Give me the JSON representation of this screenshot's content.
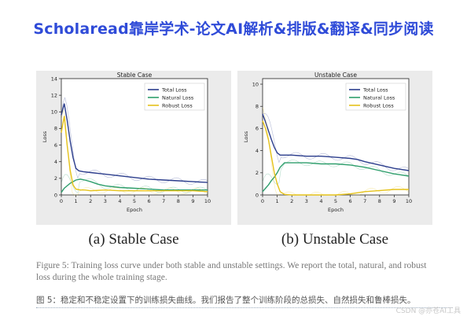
{
  "header": {
    "title": "Scholaread靠岸学术-论文AI解析&排版&翻译&同步阅读"
  },
  "figure": {
    "caption_left": "(a) Stable Case",
    "caption_right": "(b) Unstable Case",
    "caption_en": "Figure 5: Training loss curve under both stable and unstable settings. We report the total, natural, and robust loss during the whole training stage.",
    "caption_cn": "图 5：稳定和不稳定设置下的训练损失曲线。我们报告了整个训练阶段的总损失、自然损失和鲁棒损失。"
  },
  "watermark": "CSDN @亦苍AI工具",
  "chart_data": [
    {
      "type": "line",
      "title": "Stable Case",
      "xlabel": "Epoch",
      "ylabel": "Loss",
      "xlim": [
        0,
        10
      ],
      "ylim": [
        0,
        14
      ],
      "xticks": [
        0,
        1,
        2,
        3,
        4,
        5,
        6,
        7,
        8,
        9,
        10
      ],
      "yticks": [
        0,
        2,
        4,
        6,
        8,
        10,
        12,
        14
      ],
      "legend": "top-right",
      "grid": false,
      "series": [
        {
          "name": "Total Loss",
          "color": "#2b3d8c",
          "x": [
            0,
            0.2,
            0.4,
            0.6,
            0.8,
            1.0,
            1.2,
            1.5,
            2,
            3,
            4,
            5,
            6,
            7,
            8,
            9,
            10
          ],
          "y": [
            9.6,
            11.0,
            9.0,
            6.5,
            4.5,
            3.2,
            2.9,
            2.8,
            2.7,
            2.5,
            2.3,
            2.1,
            1.9,
            1.8,
            1.7,
            1.6,
            1.5
          ]
        },
        {
          "name": "Natural Loss",
          "color": "#2e9e6c",
          "x": [
            0,
            0.2,
            0.4,
            0.6,
            0.8,
            1.0,
            1.3,
            1.6,
            2,
            2.5,
            3,
            4,
            5,
            6,
            7,
            8,
            9,
            10
          ],
          "y": [
            0.3,
            0.8,
            1.1,
            1.4,
            1.6,
            1.8,
            1.9,
            1.8,
            1.6,
            1.3,
            1.1,
            0.9,
            0.8,
            0.7,
            0.6,
            0.6,
            0.6,
            0.6
          ]
        },
        {
          "name": "Robust Loss",
          "color": "#e5c21a",
          "x": [
            0,
            0.2,
            0.4,
            0.6,
            0.8,
            1.0,
            1.3,
            1.6,
            2,
            3,
            4,
            5,
            6,
            7,
            8,
            9,
            10
          ],
          "y": [
            7.5,
            9.5,
            6.0,
            3.0,
            1.2,
            0.7,
            0.6,
            0.6,
            0.5,
            0.6,
            0.5,
            0.5,
            0.5,
            0.5,
            0.5,
            0.5,
            0.4
          ]
        }
      ]
    },
    {
      "type": "line",
      "title": "Unstable Case",
      "xlabel": "Epoch",
      "ylabel": "Loss",
      "xlim": [
        0,
        10
      ],
      "ylim": [
        0,
        10.5
      ],
      "xticks": [
        0,
        1,
        2,
        3,
        4,
        5,
        6,
        7,
        8,
        9,
        10
      ],
      "yticks": [
        0,
        2,
        4,
        6,
        8,
        10
      ],
      "legend": "top-right",
      "grid": false,
      "series": [
        {
          "name": "Total Loss",
          "color": "#2b3d8c",
          "x": [
            0,
            0.2,
            0.4,
            0.6,
            0.8,
            1.0,
            1.2,
            1.5,
            2,
            3,
            4,
            5,
            6,
            6.5,
            7,
            8,
            9,
            10
          ],
          "y": [
            7.3,
            6.6,
            5.8,
            5.0,
            4.3,
            3.8,
            3.6,
            3.6,
            3.6,
            3.5,
            3.5,
            3.4,
            3.3,
            3.2,
            3.0,
            2.7,
            2.4,
            2.2
          ]
        },
        {
          "name": "Natural Loss",
          "color": "#2e9e6c",
          "x": [
            0,
            0.2,
            0.4,
            0.6,
            0.8,
            1.0,
            1.2,
            1.5,
            2,
            3,
            4,
            5,
            6,
            7,
            8,
            9,
            10
          ],
          "y": [
            0.3,
            0.6,
            0.9,
            1.3,
            1.6,
            2.0,
            2.5,
            2.9,
            2.9,
            2.9,
            2.8,
            2.8,
            2.7,
            2.5,
            2.2,
            1.9,
            1.7
          ]
        },
        {
          "name": "Robust Loss",
          "color": "#e5c21a",
          "x": [
            0,
            0.2,
            0.4,
            0.6,
            0.8,
            1.0,
            1.2,
            1.5,
            2,
            3,
            4,
            5,
            6,
            6.5,
            7,
            8,
            9,
            10
          ],
          "y": [
            6.7,
            6.0,
            5.0,
            3.5,
            2.0,
            1.0,
            0.3,
            0.05,
            0.0,
            0.0,
            0.0,
            0.0,
            0.1,
            0.2,
            0.3,
            0.4,
            0.5,
            0.5
          ]
        }
      ]
    }
  ]
}
